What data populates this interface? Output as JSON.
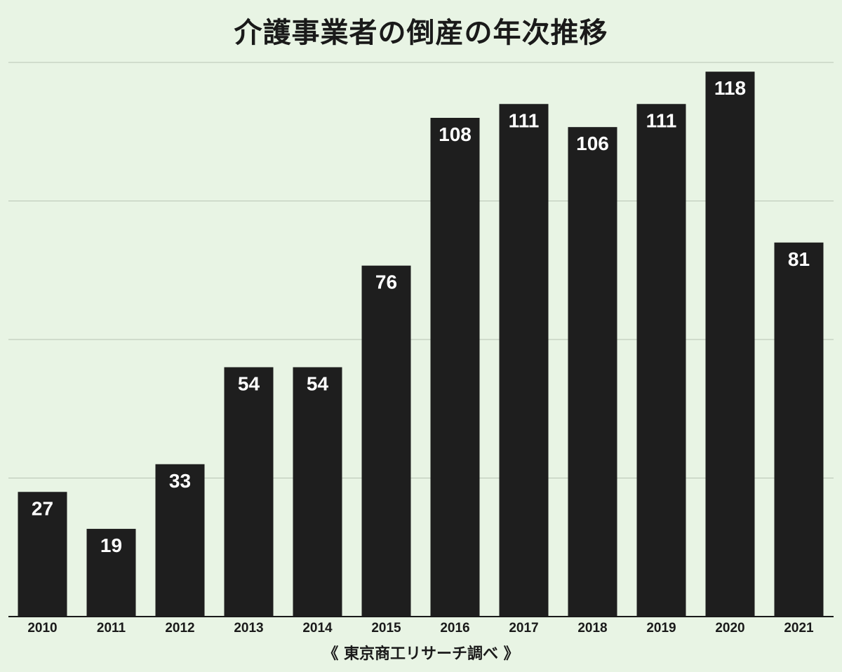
{
  "chart_data": {
    "type": "bar",
    "title": "介護事業者の倒産の年次推移",
    "source": "《 東京商工リサーチ調べ 》",
    "categories": [
      "2010",
      "2011",
      "2012",
      "2013",
      "2014",
      "2015",
      "2016",
      "2017",
      "2018",
      "2019",
      "2020",
      "2021"
    ],
    "values": [
      27,
      19,
      33,
      54,
      54,
      76,
      108,
      111,
      106,
      111,
      118,
      81
    ],
    "xlabel": "",
    "ylabel": "",
    "ylim": [
      0,
      120
    ],
    "grid": true,
    "gridlines": [
      0,
      30,
      60,
      90,
      120
    ],
    "legend": "none",
    "colors": {
      "background": "#e8f4e4",
      "bar": "#1e1e1e",
      "bar_label": "#ffffff",
      "grid": "#b8c4b4",
      "axis": "#1a1a1a"
    }
  }
}
